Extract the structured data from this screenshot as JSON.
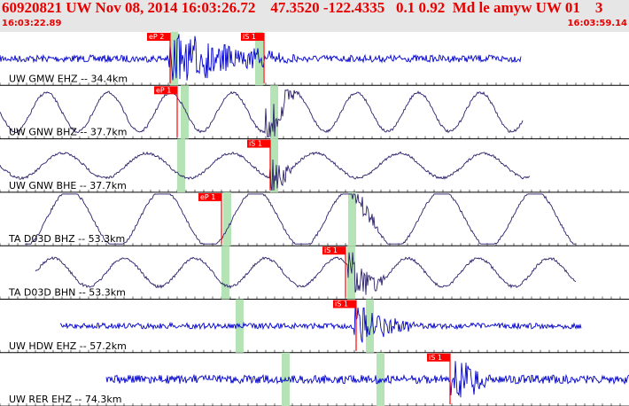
{
  "header": {
    "title": "60920821 UW Nov 08, 2014 16:03:26.72    47.3520 -122.4335   0.1 0.92  Md le amyw UW 01    3",
    "start_time": "16:03:22.89",
    "end_time": "16:03:59.14"
  },
  "colors": {
    "header_bg": "#e6e6e6",
    "header_text": "#e80000",
    "trace_blue": "#0000cc",
    "trace_dark": "#2a1f6b",
    "pick_red": "#ff0000",
    "window_green": "#b6e3b6"
  },
  "traces": [
    {
      "label": "UW GMW EHZ -- 34.4km",
      "color": "trace_blue",
      "style": "noise",
      "picks": [
        {
          "text": "eP 2",
          "x": 192
        },
        {
          "text": "iS 1",
          "x": 298
        }
      ]
    },
    {
      "label": "UW GNW BHZ -- 37.7km",
      "color": "trace_dark",
      "style": "wave",
      "picks": [
        {
          "text": "eP 1",
          "x": 200
        }
      ]
    },
    {
      "label": "UW GNW BHE -- 37.7km",
      "color": "trace_dark",
      "style": "wave",
      "picks": [
        {
          "text": "iS 1",
          "x": 305
        }
      ]
    },
    {
      "label": "TA D03D BHZ -- 53.3km",
      "color": "trace_dark",
      "style": "wave",
      "picks": [
        {
          "text": "eP 1",
          "x": 250
        }
      ]
    },
    {
      "label": "TA D03D BHN -- 53.3km",
      "color": "trace_dark",
      "style": "wave",
      "picks": [
        {
          "text": "iS 1",
          "x": 390
        }
      ]
    },
    {
      "label": "UW HDW EHZ -- 57.2km",
      "color": "trace_blue",
      "style": "noise",
      "picks": [
        {
          "text": "iS 1",
          "x": 402
        }
      ]
    },
    {
      "label": "UW RER EHZ -- 74.3km",
      "color": "trace_blue",
      "style": "noise",
      "picks": [
        {
          "text": "iS 1",
          "x": 508
        }
      ]
    }
  ]
}
